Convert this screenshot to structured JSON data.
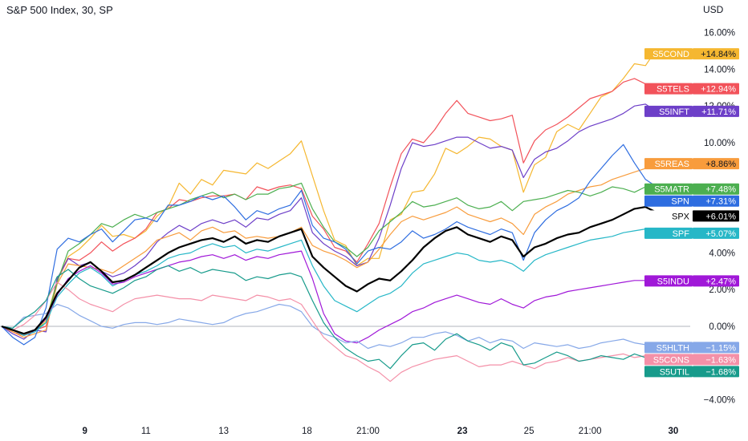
{
  "header": {
    "title": "S&P 500 Index, 30, SP",
    "currency": "USD"
  },
  "chart_data": {
    "type": "line",
    "title": "S&P 500 Index, 30, SP",
    "ylabel_unit": "USD",
    "ylim": [
      -5.0,
      17.5
    ],
    "y_ticks": [
      16,
      14,
      12,
      10,
      4,
      2,
      0,
      -4
    ],
    "y_tick_labels": [
      "16.00%",
      "14.00%",
      "12.00%",
      "10.00%",
      "4.00%",
      "2.00%",
      "0.00%",
      "−4.00%"
    ],
    "x_ticks": [
      {
        "label": "9",
        "bold": true,
        "t": 7.5
      },
      {
        "label": "11",
        "bold": false,
        "t": 13.0
      },
      {
        "label": "13",
        "bold": false,
        "t": 20.0
      },
      {
        "label": "18",
        "bold": false,
        "t": 27.5
      },
      {
        "label": "21:00",
        "bold": false,
        "t": 33.0
      },
      {
        "label": "23",
        "bold": true,
        "t": 41.5
      },
      {
        "label": "25",
        "bold": false,
        "t": 47.5
      },
      {
        "label": "21:00",
        "bold": false,
        "t": 53.0
      },
      {
        "label": "30",
        "bold": true,
        "t": 60.5
      }
    ],
    "x_range": [
      0,
      62.5
    ],
    "series": [
      {
        "name": "S5COND",
        "label": "+14.84%",
        "color": "#f5b730",
        "width": 1.2,
        "values": [
          0.0,
          -0.3,
          -0.5,
          -0.2,
          0.3,
          2.5,
          3.8,
          4.2,
          4.8,
          5.5,
          4.9,
          5.0,
          4.8,
          5.2,
          6.0,
          6.5,
          7.8,
          7.2,
          8.0,
          7.7,
          8.5,
          8.4,
          8.3,
          8.9,
          8.6,
          9.0,
          9.4,
          10.1,
          8.2,
          6.3,
          4.7,
          4.4,
          3.3,
          3.7,
          3.7,
          5.8,
          6.1,
          7.3,
          7.4,
          8.3,
          9.7,
          9.4,
          9.8,
          10.3,
          10.2,
          9.8,
          9.6,
          7.3,
          8.8,
          9.2,
          10.6,
          11.0,
          10.7,
          11.6,
          12.5,
          12.8,
          13.5,
          14.3,
          14.2,
          15.1,
          14.84
        ]
      },
      {
        "name": "S5TELS",
        "label": "+12.94%",
        "color": "#f2525a",
        "width": 1.2,
        "values": [
          0.0,
          -0.3,
          -0.5,
          -0.2,
          0.0,
          2.5,
          3.7,
          3.6,
          4.0,
          4.6,
          4.1,
          4.5,
          4.8,
          5.3,
          6.2,
          6.4,
          6.9,
          6.8,
          7.0,
          7.1,
          7.1,
          7.2,
          6.9,
          7.6,
          7.4,
          7.6,
          7.7,
          7.5,
          6.0,
          5.3,
          4.3,
          4.1,
          3.5,
          4.5,
          5.6,
          7.6,
          9.4,
          10.2,
          10.0,
          10.7,
          11.6,
          12.3,
          11.6,
          11.4,
          11.2,
          11.3,
          11.5,
          8.9,
          10.1,
          10.7,
          11.0,
          11.4,
          11.9,
          12.4,
          12.6,
          12.8,
          13.3,
          13.5,
          13.2,
          13.0,
          12.94
        ]
      },
      {
        "name": "S5INFT",
        "label": "+11.71%",
        "color": "#6d3fc8",
        "width": 1.2,
        "values": [
          0.0,
          -0.4,
          -0.7,
          -0.2,
          -0.3,
          2.6,
          3.7,
          3.3,
          3.5,
          3.0,
          2.7,
          2.9,
          3.3,
          3.8,
          4.6,
          5.1,
          5.5,
          5.2,
          5.6,
          5.8,
          5.6,
          5.8,
          5.4,
          5.9,
          5.8,
          6.1,
          6.3,
          7.0,
          5.1,
          4.5,
          4.1,
          3.8,
          3.3,
          3.5,
          4.8,
          6.6,
          8.6,
          10.0,
          9.8,
          9.9,
          10.1,
          10.3,
          10.3,
          10.0,
          9.7,
          9.8,
          9.6,
          8.1,
          9.1,
          9.5,
          9.7,
          10.1,
          10.6,
          10.9,
          11.1,
          11.3,
          11.6,
          12.0,
          12.1,
          11.7,
          11.71
        ]
      },
      {
        "name": "S5REAS",
        "label": "+8.86%",
        "color": "#f89c3c",
        "width": 1.2,
        "values": [
          0.0,
          -0.3,
          -0.6,
          -0.4,
          -0.2,
          2.3,
          3.4,
          3.3,
          3.2,
          3.1,
          2.9,
          3.3,
          3.7,
          4.1,
          4.7,
          4.9,
          5.1,
          4.7,
          5.2,
          5.4,
          5.1,
          5.2,
          4.8,
          4.9,
          4.8,
          4.9,
          5.1,
          5.4,
          4.4,
          4.1,
          3.9,
          3.6,
          3.2,
          3.5,
          4.2,
          5.0,
          5.7,
          6.0,
          5.8,
          6.0,
          6.2,
          6.5,
          6.1,
          5.9,
          5.7,
          5.9,
          5.6,
          5.0,
          6.1,
          6.5,
          6.8,
          7.2,
          7.4,
          7.6,
          7.7,
          8.0,
          8.2,
          8.4,
          8.6,
          8.8,
          8.86
        ]
      },
      {
        "name": "S5MATR",
        "label": "+7.48%",
        "color": "#4caf50",
        "width": 1.2,
        "values": [
          0.0,
          -0.2,
          -0.4,
          -0.2,
          0.2,
          2.4,
          4.1,
          4.5,
          5.0,
          5.6,
          5.4,
          5.8,
          6.1,
          5.9,
          6.2,
          6.4,
          6.6,
          6.9,
          7.1,
          7.3,
          7.0,
          7.2,
          6.9,
          7.2,
          7.2,
          7.5,
          7.6,
          7.8,
          6.4,
          5.4,
          4.6,
          4.3,
          3.8,
          4.3,
          5.2,
          5.7,
          6.2,
          6.8,
          6.5,
          6.6,
          6.8,
          7.0,
          6.6,
          6.4,
          6.5,
          6.8,
          6.3,
          6.8,
          6.9,
          7.0,
          7.2,
          7.4,
          7.3,
          7.1,
          7.3,
          7.6,
          7.5,
          7.3,
          7.6,
          7.5,
          7.48
        ]
      },
      {
        "name": "SPN",
        "label": "+7.31%",
        "color": "#2e6de0",
        "width": 1.2,
        "values": [
          0.0,
          -0.6,
          -1.0,
          -0.6,
          1.0,
          4.2,
          4.8,
          4.6,
          5.0,
          5.3,
          4.6,
          5.2,
          5.8,
          5.9,
          5.7,
          6.6,
          6.6,
          6.8,
          7.1,
          6.9,
          7.1,
          6.5,
          5.8,
          6.3,
          6.1,
          6.4,
          6.6,
          7.4,
          5.5,
          4.8,
          4.6,
          4.2,
          3.4,
          4.1,
          4.3,
          4.2,
          4.6,
          5.2,
          4.8,
          5.0,
          5.3,
          5.7,
          5.4,
          5.2,
          5.0,
          5.3,
          5.1,
          3.6,
          5.1,
          5.8,
          6.3,
          6.6,
          7.0,
          7.9,
          8.6,
          9.3,
          9.9,
          8.9,
          8.0,
          7.6,
          7.31
        ]
      },
      {
        "name": "SPX",
        "label": "+6.01%",
        "color": "#000000",
        "width": 2.2,
        "values": [
          0.0,
          -0.2,
          -0.4,
          -0.2,
          0.5,
          1.8,
          2.5,
          3.2,
          3.5,
          3.0,
          2.4,
          2.5,
          2.8,
          3.2,
          3.6,
          4.0,
          4.3,
          4.5,
          4.7,
          4.8,
          4.6,
          4.9,
          4.5,
          4.7,
          4.6,
          4.9,
          5.1,
          5.3,
          3.8,
          3.2,
          2.7,
          2.2,
          1.9,
          2.3,
          2.6,
          2.5,
          3.0,
          3.6,
          4.3,
          4.8,
          5.2,
          5.4,
          5.0,
          4.8,
          4.6,
          4.9,
          4.7,
          3.8,
          4.3,
          4.5,
          4.8,
          5.0,
          5.1,
          5.4,
          5.6,
          5.8,
          6.1,
          6.4,
          6.5,
          6.2,
          6.01
        ]
      },
      {
        "name": "SPF",
        "label": "+5.07%",
        "color": "#26b7c7",
        "width": 1.2,
        "values": [
          0.0,
          -0.2,
          -0.5,
          -0.3,
          0.2,
          1.6,
          2.3,
          2.9,
          3.2,
          2.8,
          2.2,
          2.5,
          2.8,
          3.0,
          3.3,
          3.7,
          3.9,
          4.0,
          4.3,
          4.5,
          4.3,
          4.4,
          4.0,
          4.2,
          4.1,
          4.3,
          4.5,
          4.7,
          3.3,
          2.2,
          1.4,
          1.1,
          0.8,
          1.2,
          1.6,
          1.8,
          2.2,
          2.9,
          3.4,
          3.6,
          3.8,
          4.0,
          3.9,
          3.6,
          3.5,
          3.6,
          3.4,
          3.0,
          3.6,
          3.9,
          4.1,
          4.3,
          4.5,
          4.7,
          4.8,
          4.9,
          5.1,
          5.2,
          5.3,
          5.2,
          5.07
        ]
      },
      {
        "name": "S5INDU",
        "label": "+2.47%",
        "color": "#a018d8",
        "width": 1.2,
        "values": [
          0.0,
          -0.2,
          -0.4,
          -0.2,
          0.4,
          1.7,
          2.6,
          3.0,
          3.3,
          2.9,
          2.3,
          2.4,
          2.7,
          2.9,
          3.1,
          3.3,
          3.5,
          3.6,
          3.8,
          3.9,
          3.7,
          3.9,
          3.6,
          3.8,
          3.7,
          3.9,
          4.0,
          4.1,
          2.6,
          0.7,
          -0.4,
          -0.8,
          -0.9,
          -0.6,
          -0.2,
          0.1,
          0.4,
          0.8,
          1.0,
          1.3,
          1.5,
          1.7,
          1.5,
          1.3,
          1.2,
          1.5,
          1.2,
          1.0,
          1.4,
          1.6,
          1.7,
          1.9,
          2.0,
          2.1,
          2.2,
          2.3,
          2.4,
          2.5,
          2.5,
          2.6,
          2.47
        ]
      },
      {
        "name": "S5HLTH",
        "label": "−1.15%",
        "color": "#86a8e8",
        "width": 1.2,
        "values": [
          0.0,
          -0.1,
          0.5,
          0.6,
          0.7,
          1.2,
          1.0,
          0.6,
          0.3,
          0.0,
          -0.1,
          0.1,
          0.2,
          0.2,
          0.1,
          0.2,
          0.4,
          0.3,
          0.2,
          0.1,
          0.2,
          0.5,
          0.7,
          0.8,
          1.0,
          1.2,
          1.1,
          0.8,
          0.0,
          -0.4,
          -0.6,
          -0.9,
          -0.8,
          -1.2,
          -1.0,
          -1.1,
          -0.9,
          -0.6,
          -0.6,
          -0.4,
          -0.3,
          -0.5,
          -0.8,
          -0.6,
          -0.9,
          -0.7,
          -0.8,
          -1.2,
          -0.9,
          -1.0,
          -1.1,
          -1.0,
          -1.2,
          -1.1,
          -0.9,
          -0.8,
          -0.7,
          -0.9,
          -1.0,
          -1.1,
          -1.15
        ]
      },
      {
        "name": "S5CONS",
        "label": "−1.63%",
        "color": "#f490a8",
        "width": 1.2,
        "values": [
          0.0,
          -0.2,
          0.1,
          0.6,
          1.4,
          2.4,
          2.0,
          1.5,
          1.2,
          1.0,
          0.8,
          1.2,
          1.5,
          1.6,
          1.7,
          1.6,
          1.5,
          1.5,
          1.4,
          1.7,
          1.6,
          1.5,
          1.4,
          1.7,
          1.6,
          1.4,
          1.5,
          1.2,
          0.3,
          -0.6,
          -1.1,
          -1.6,
          -1.8,
          -2.2,
          -2.5,
          -3.0,
          -2.5,
          -2.2,
          -2.0,
          -1.8,
          -1.7,
          -1.6,
          -1.9,
          -2.2,
          -2.1,
          -2.1,
          -1.9,
          -2.1,
          -2.3,
          -2.0,
          -1.9,
          -1.7,
          -1.9,
          -1.8,
          -1.7,
          -1.6,
          -1.5,
          -1.7,
          -1.6,
          -1.6,
          -1.63
        ]
      },
      {
        "name": "S5UTIL",
        "label": "−1.68%",
        "color": "#179b8b",
        "width": 1.2,
        "values": [
          0.0,
          -0.1,
          0.4,
          0.8,
          1.4,
          2.7,
          3.1,
          2.6,
          2.2,
          2.0,
          1.8,
          2.1,
          2.5,
          2.7,
          3.1,
          3.3,
          3.0,
          3.2,
          2.9,
          3.1,
          3.0,
          2.9,
          2.5,
          2.7,
          2.6,
          2.8,
          2.9,
          2.7,
          1.4,
          0.2,
          -0.6,
          -1.2,
          -1.6,
          -1.9,
          -1.8,
          -2.3,
          -1.6,
          -1.0,
          -0.9,
          -1.3,
          -0.7,
          -0.4,
          -0.8,
          -1.0,
          -1.3,
          -0.9,
          -1.1,
          -2.1,
          -2.0,
          -1.7,
          -1.4,
          -1.6,
          -1.9,
          -1.8,
          -1.6,
          -1.7,
          -1.8,
          -1.5,
          -1.7,
          -1.6,
          -1.68
        ]
      }
    ],
    "badges": [
      {
        "series": "S5COND",
        "value": 14.84
      },
      {
        "series": "S5TELS",
        "value": 12.94
      },
      {
        "series": "S5INFT",
        "value": 11.71
      },
      {
        "series": "S5REAS",
        "value": 8.86
      },
      {
        "series": "S5MATR",
        "value": 7.48
      },
      {
        "series": "SPN",
        "value": 7.31
      },
      {
        "series": "SPX",
        "value": 6.01
      },
      {
        "series": "SPF",
        "value": 5.07
      },
      {
        "series": "S5INDU",
        "value": 2.47
      },
      {
        "series": "S5HLTH",
        "value": -1.15
      },
      {
        "series": "S5CONS",
        "value": -1.63
      },
      {
        "series": "S5UTIL",
        "value": -1.68
      }
    ],
    "zero_line": true,
    "grid": false,
    "legend": "right-axis badges"
  }
}
